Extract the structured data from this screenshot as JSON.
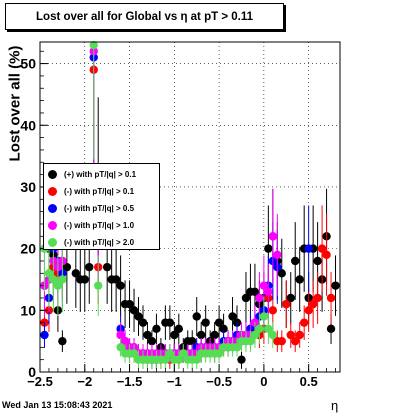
{
  "title": "Lost over all for Global vs   η at pT > 0.11",
  "timestamp": "Wed Jan 13 15:08:43 2021",
  "chart_data": {
    "type": "scatter",
    "title": "Lost over all for Global vs   η at pT > 0.11",
    "xlabel": "η",
    "ylabel": "Lost over all (%)",
    "xlim": [
      -2.5,
      0.85
    ],
    "ylim": [
      0,
      53.5
    ],
    "xticks": [
      -2.5,
      -2,
      -1.5,
      -1,
      -0.5,
      0,
      0.5
    ],
    "xtick_labels": [
      "−2.5",
      "−2",
      "−1.5",
      "−1",
      "−0.5",
      "0",
      "0.5"
    ],
    "yticks": [
      0,
      10,
      20,
      30,
      40,
      50
    ],
    "ytick_labels": [
      "0",
      "10",
      "20",
      "30",
      "40",
      "50"
    ],
    "grid": true,
    "legend_position": "middle-left",
    "series": [
      {
        "name": "(+) with pT/|q| > 0.1",
        "color": "#000000",
        "x": [
          -2.45,
          -2.4,
          -2.35,
          -2.3,
          -2.25,
          -2.2,
          -2.1,
          -2.05,
          -2.0,
          -1.95,
          -1.85,
          -1.75,
          -1.7,
          -1.65,
          -1.6,
          -1.55,
          -1.5,
          -1.45,
          -1.4,
          -1.35,
          -1.3,
          -1.25,
          -1.2,
          -1.15,
          -1.1,
          -1.05,
          -1.0,
          -0.95,
          -0.9,
          -0.85,
          -0.8,
          -0.75,
          -0.7,
          -0.65,
          -0.6,
          -0.55,
          -0.5,
          -0.45,
          -0.4,
          -0.35,
          -0.3,
          -0.25,
          -0.2,
          -0.15,
          -0.1,
          -0.05,
          0.0,
          0.05,
          0.1,
          0.15,
          0.2,
          0.25,
          0.3,
          0.35,
          0.4,
          0.45,
          0.5,
          0.55,
          0.6,
          0.65,
          0.7,
          0.75,
          0.8
        ],
        "y": [
          14,
          20,
          19,
          10,
          5,
          17,
          16,
          15,
          15,
          17,
          33,
          17,
          15,
          15,
          14,
          11,
          11,
          10,
          9,
          8,
          6,
          5,
          7,
          4,
          8,
          8,
          6,
          7,
          4,
          5,
          5,
          9,
          6,
          8,
          5,
          6,
          8,
          7,
          4,
          9,
          8,
          2,
          12,
          13,
          13,
          11,
          12,
          20,
          22,
          18,
          16,
          11,
          12,
          18,
          15,
          20,
          12,
          20,
          18,
          15,
          22,
          7,
          14
        ]
      },
      {
        "name": "(-) with pT/|q| > 0.1",
        "color": "#ff0000",
        "x": [
          -2.45,
          -2.4,
          -2.35,
          -2.3,
          -2.25,
          -1.9,
          -1.85,
          -1.6,
          -1.55,
          -1.5,
          -1.45,
          -1.4,
          -1.35,
          -1.3,
          -1.25,
          -1.2,
          -1.15,
          -1.1,
          -1.05,
          -1.0,
          -0.95,
          -0.9,
          -0.85,
          -0.8,
          -0.75,
          -0.7,
          -0.65,
          -0.6,
          -0.55,
          -0.5,
          -0.45,
          -0.4,
          -0.35,
          -0.3,
          -0.25,
          -0.2,
          -0.15,
          -0.1,
          -0.05,
          0.0,
          0.05,
          0.1,
          0.15,
          0.2,
          0.25,
          0.3,
          0.35,
          0.4,
          0.45,
          0.5,
          0.55,
          0.6,
          0.65,
          0.7,
          0.75
        ],
        "y": [
          8,
          10,
          17,
          16,
          18,
          49,
          17,
          6,
          4,
          3,
          3,
          3,
          2,
          2,
          2,
          2,
          2,
          3,
          2,
          3,
          2,
          3,
          3,
          3,
          3,
          3,
          4,
          4,
          3,
          4,
          4,
          5,
          5,
          5,
          5,
          6,
          7,
          7,
          6,
          7,
          12,
          10,
          5,
          5,
          11,
          6,
          5,
          6,
          8,
          10,
          11,
          12,
          20,
          19,
          12
        ]
      },
      {
        "name": "(-) with pT/|q| > 0.5",
        "color": "#0000ff",
        "x": [
          -2.45,
          -2.4,
          -2.35,
          -2.3,
          -2.25,
          -1.9,
          -1.85,
          -1.6,
          -1.55,
          -1.5,
          -1.45,
          -1.4,
          -1.35,
          -1.3,
          -1.25,
          -1.2,
          -1.15,
          -1.1,
          -1.05,
          -1.0,
          -0.95,
          -0.9,
          -0.85,
          -0.8,
          -0.75,
          -0.7,
          -0.65,
          -0.6,
          -0.55,
          -0.5,
          -0.45,
          -0.4,
          -0.35,
          -0.3,
          -0.25,
          -0.2,
          -0.15,
          -0.1,
          -0.05,
          0.0,
          0.05,
          0.1,
          0.15,
          0.5
        ],
        "y": [
          6,
          12,
          20,
          18,
          16,
          51,
          21,
          7,
          5,
          4,
          4,
          3,
          3,
          3,
          2,
          2,
          3,
          3,
          3,
          3,
          3,
          3,
          3,
          3,
          4,
          4,
          4,
          4,
          4,
          4,
          5,
          5,
          5,
          6,
          5,
          6,
          7,
          8,
          9,
          10,
          14,
          18,
          17,
          20
        ]
      },
      {
        "name": "(-) with pT/|q| > 1.0",
        "color": "#ff00ff",
        "x": [
          -2.45,
          -2.4,
          -2.35,
          -2.3,
          -2.25,
          -1.9,
          -1.85,
          -1.6,
          -1.55,
          -1.5,
          -1.45,
          -1.4,
          -1.35,
          -1.3,
          -1.25,
          -1.2,
          -1.15,
          -1.1,
          -1.05,
          -1.0,
          -0.95,
          -0.9,
          -0.85,
          -0.8,
          -0.75,
          -0.7,
          -0.65,
          -0.6,
          -0.55,
          -0.5,
          -0.45,
          -0.4,
          -0.35,
          -0.3,
          -0.25,
          -0.2,
          -0.15,
          -0.1,
          -0.05,
          0.0,
          0.05,
          0.1,
          0.15
        ],
        "y": [
          14,
          15,
          18,
          17,
          18,
          52,
          22,
          6,
          5,
          4,
          4,
          3,
          3,
          3,
          3,
          3,
          3,
          3,
          3,
          3,
          3,
          3,
          3,
          3,
          3,
          4,
          4,
          4,
          4,
          4,
          4,
          5,
          5,
          5,
          6,
          6,
          6,
          8,
          12,
          14,
          13,
          22,
          19
        ]
      },
      {
        "name": "(-) with pT/|q| > 2.0",
        "color": "#55dd55",
        "x": [
          -2.45,
          -2.4,
          -2.35,
          -2.3,
          -2.25,
          -1.9,
          -1.85,
          -1.6,
          -1.55,
          -1.5,
          -1.45,
          -1.4,
          -1.35,
          -1.3,
          -1.25,
          -1.2,
          -1.15,
          -1.1,
          -1.05,
          -1.0,
          -0.95,
          -0.9,
          -0.85,
          -0.8,
          -0.75,
          -0.7,
          -0.65,
          -0.6,
          -0.55,
          -0.5,
          -0.45,
          -0.4,
          -0.35,
          -0.3,
          -0.25,
          -0.2,
          -0.15,
          -0.1,
          -0.05,
          0.0,
          0.05,
          0.1
        ],
        "y": [
          20,
          16,
          15,
          14,
          15,
          53,
          14,
          4,
          3,
          3,
          3,
          2,
          2,
          2,
          2,
          2,
          2,
          2,
          3,
          2,
          2,
          3,
          2,
          2,
          2,
          3,
          3,
          3,
          3,
          3,
          4,
          4,
          4,
          4,
          5,
          5,
          5,
          6,
          7,
          9,
          7,
          6
        ]
      }
    ]
  },
  "legend": [
    {
      "label": "(+) with pT/|q| > 0.1",
      "color": "#000000"
    },
    {
      "label": "(-) with pT/|q| > 0.1",
      "color": "#ff0000"
    },
    {
      "label": "(-) with pT/|q| > 0.5",
      "color": "#0000ff"
    },
    {
      "label": "(-) with pT/|q| > 1.0",
      "color": "#ff00ff"
    },
    {
      "label": "(-) with pT/|q| > 2.0",
      "color": "#55dd55"
    }
  ]
}
